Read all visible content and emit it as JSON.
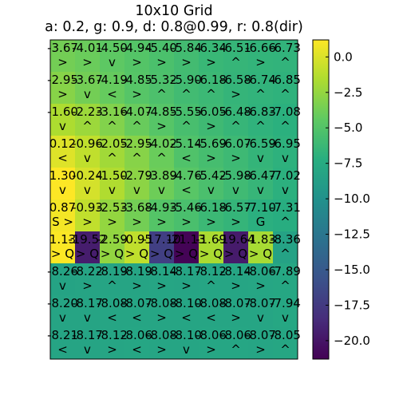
{
  "chart_data": {
    "type": "heatmap",
    "title_lines": [
      "10x10 Grid",
      "a: 0.2, g: 0.9, d: 0.8@0.99, r: 0.8(dir)"
    ],
    "colormap": "viridis",
    "value_range": [
      -21.3,
      1.2
    ],
    "colorbar_ticks": [
      0,
      -2.5,
      -5,
      -7.5,
      -10,
      -12.5,
      -15,
      -17.5,
      -20
    ],
    "colorbar_tick_labels": [
      "0.0",
      "−2.5",
      "−5.0",
      "−7.5",
      "−10.0",
      "−12.5",
      "−15.0",
      "−17.5",
      "−20.0"
    ],
    "rows": 10,
    "cols": 10,
    "values": [
      [
        -3.67,
        -4.01,
        -4.5,
        -4.94,
        -5.4,
        -5.84,
        -6.34,
        -6.51,
        -6.66,
        -6.73
      ],
      [
        -2.95,
        -3.67,
        -4.19,
        -4.85,
        -5.32,
        -5.9,
        -6.18,
        -6.58,
        -6.74,
        -6.85
      ],
      [
        -1.6,
        -2.23,
        -3.16,
        -4.07,
        -4.85,
        -5.55,
        -6.05,
        -6.48,
        -6.83,
        -7.08
      ],
      [
        0.12,
        -0.96,
        -2.05,
        -2.95,
        -4.02,
        -5.14,
        -5.69,
        -6.07,
        -6.59,
        -6.95
      ],
      [
        1.3,
        -0.24,
        -1.5,
        -2.79,
        -3.89,
        -4.76,
        -5.42,
        -5.98,
        -6.47,
        -7.02
      ],
      [
        0.87,
        -0.93,
        -2.53,
        -3.68,
        -4.93,
        -5.46,
        -6.18,
        -6.57,
        -7.1,
        -7.31
      ],
      [
        1.13,
        -19.52,
        -2.59,
        -0.95,
        -17.1,
        -21.13,
        -1.69,
        -19.64,
        -1.83,
        -8.36
      ],
      [
        -8.26,
        -8.22,
        -8.19,
        -8.19,
        -8.14,
        -8.17,
        -8.12,
        -8.14,
        -8.06,
        -7.89
      ],
      [
        -8.2,
        -8.17,
        -8.08,
        -8.07,
        -8.08,
        -8.1,
        -8.08,
        -8.07,
        -8.07,
        -7.94
      ],
      [
        -8.21,
        -8.17,
        -8.12,
        -8.06,
        -8.08,
        -8.1,
        -8.06,
        -8.06,
        -8.07,
        -8.05
      ]
    ],
    "value_labels": [
      [
        "-3.67",
        "-4.01",
        "-4.50",
        "-4.94",
        "-5.40",
        "-5.84",
        "-6.34",
        "-6.51",
        "-6.66",
        "-6.73"
      ],
      [
        "-2.95",
        "-3.67",
        "-4.19",
        "-4.85",
        "-5.32",
        "-5.90",
        "-6.18",
        "-6.58",
        "-6.74",
        "-6.85"
      ],
      [
        "-1.60",
        "-2.23",
        "-3.16",
        "-4.07",
        "-4.85",
        "-5.55",
        "-6.05",
        "-6.48",
        "-6.83",
        "-7.08"
      ],
      [
        "0.12",
        "-0.96",
        "-2.05",
        "-2.95",
        "-4.02",
        "-5.14",
        "-5.69",
        "-6.07",
        "-6.59",
        "-6.95"
      ],
      [
        "1.30",
        "-0.24",
        "-1.50",
        "-2.79",
        "-3.89",
        "-4.76",
        "-5.42",
        "-5.98",
        "-6.47",
        "-7.02"
      ],
      [
        "0.87",
        "-0.93",
        "-2.53",
        "-3.68",
        "-4.93",
        "-5.46",
        "-6.18",
        "-6.57",
        "-7.10",
        "-7.31"
      ],
      [
        "1.13",
        "-19.52",
        "-2.59",
        "-0.95",
        "-17.10",
        "-21.13",
        "-1.69",
        "-19.64",
        "-1.83",
        "-8.36"
      ],
      [
        "-8.26",
        "-8.22",
        "-8.19",
        "-8.19",
        "-8.14",
        "-8.17",
        "-8.12",
        "-8.14",
        "-8.06",
        "-7.89"
      ],
      [
        "-8.20",
        "-8.17",
        "-8.08",
        "-8.07",
        "-8.08",
        "-8.10",
        "-8.08",
        "-8.07",
        "-8.07",
        "-7.94"
      ],
      [
        "-8.21",
        "-8.17",
        "-8.12",
        "-8.06",
        "-8.08",
        "-8.10",
        "-8.06",
        "-8.06",
        "-8.07",
        "-8.05"
      ]
    ],
    "markers": [
      [
        ">",
        ">",
        "v",
        ">",
        ">",
        ">",
        ">",
        "^",
        ">",
        "^"
      ],
      [
        ">",
        "v",
        "<",
        ">",
        "^",
        "^",
        "^",
        ">",
        "^",
        "^"
      ],
      [
        "v",
        "^",
        "^",
        "^",
        ">",
        "^",
        ">",
        "^",
        "^",
        "^"
      ],
      [
        "<",
        "v",
        "^",
        "^",
        "^",
        "<",
        ">",
        ">",
        "v",
        "v"
      ],
      [
        "v",
        "v",
        "v",
        "v",
        "v",
        "<",
        "v",
        "v",
        "v",
        "v"
      ],
      [
        "S >",
        ">",
        ">",
        ">",
        ">",
        ">",
        ">",
        ">",
        "G",
        "^"
      ],
      [
        "> Q",
        "> Q",
        "> Q",
        "> Q",
        "> Q",
        "> Q",
        "> Q",
        "> Q",
        "> Q",
        "^"
      ],
      [
        "v",
        ">",
        "^",
        ">",
        ">",
        ">",
        "^",
        ">",
        ">",
        "^"
      ],
      [
        "v",
        "v",
        "<",
        "<",
        ">",
        "<",
        "<",
        ">",
        "v",
        "v"
      ],
      [
        "<",
        "v",
        ">",
        "<",
        ">",
        "v",
        ">",
        "^",
        ">",
        "^"
      ]
    ]
  }
}
